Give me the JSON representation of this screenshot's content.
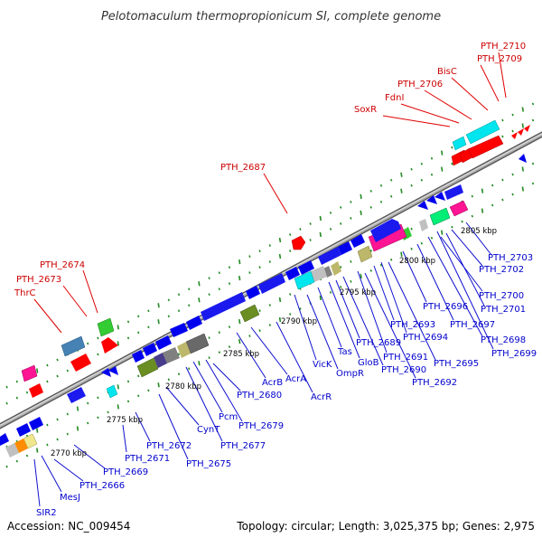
{
  "title": "Pelotomaculum thermopropionicum SI, complete genome",
  "accession": "Accession: NC_009454",
  "topology": "Topology: circular; Length: 3,025,375 bp; Genes: 2,975",
  "colors": {
    "forward_label": "#cc0000",
    "reverse_label": "#0000cc",
    "backbone": "#999999",
    "tick": "#228b22"
  },
  "kbp_markers": [
    "2770 kbp",
    "2775 kbp",
    "2780 kbp",
    "2785 kbp",
    "2790 kbp",
    "2795 kbp",
    "2800 kbp",
    "2805 kbp"
  ],
  "forward_labels": [
    "PTH_2710",
    "PTH_2709",
    "BisC",
    "PTH_2706",
    "FdnI",
    "SoxR",
    "PTH_2687",
    "PTH_2674",
    "PTH_2673",
    "ThrC"
  ],
  "reverse_labels": [
    "SIR2",
    "MesJ",
    "PTH_2666",
    "PTH_2669",
    "PTH_2671",
    "PTH_2672",
    "PTH_2675",
    "CynT",
    "PTH_2677",
    "Pcm",
    "PTH_2679",
    "PTH_2680",
    "AcrB",
    "AcrA",
    "AcrR",
    "VicK",
    "OmpR",
    "Tas",
    "GloB",
    "PTH_2689",
    "PTH_2690",
    "PTH_2691",
    "PTH_2692",
    "PTH_2693",
    "PTH_2694",
    "PTH_2695",
    "PTH_2696",
    "PTH_2697",
    "PTH_2698",
    "PTH_2699",
    "PTH_2700",
    "PTH_2701",
    "PTH_2702",
    "PTH_2703"
  ]
}
